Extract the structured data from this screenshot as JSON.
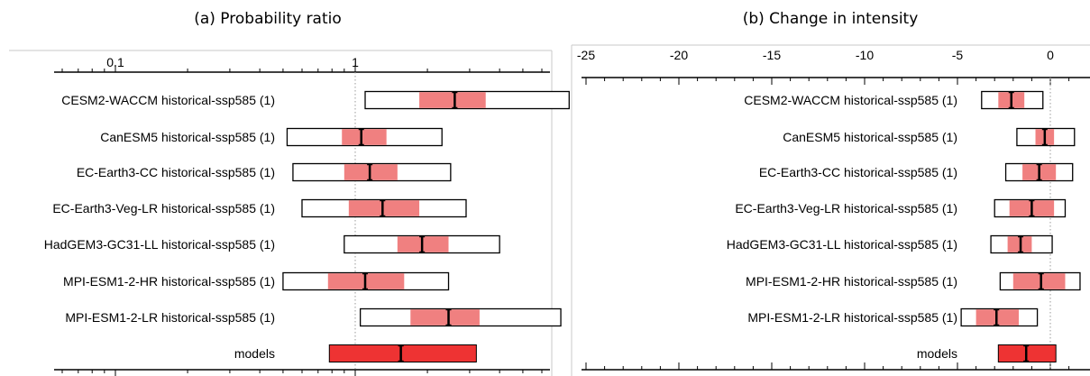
{
  "chart_data": [
    {
      "type": "forest",
      "title": "(a) Probability ratio",
      "xscale": "log",
      "xticks": [
        0.1,
        1
      ],
      "tick_labels": [
        "0.1",
        "1"
      ],
      "reference_line": 1,
      "rows": [
        {
          "label": "CESM2-WACCM historical-ssp585 (1)",
          "best": 2.6,
          "inner": [
            1.85,
            3.5
          ],
          "outer": [
            1.1,
            7.8
          ],
          "style": "model"
        },
        {
          "label": "CanESM5 historical-ssp585 (1)",
          "best": 1.06,
          "inner": [
            0.88,
            1.35
          ],
          "outer": [
            0.52,
            2.3
          ],
          "style": "model"
        },
        {
          "label": "EC-Earth3-CC historical-ssp585 (1)",
          "best": 1.15,
          "inner": [
            0.9,
            1.5
          ],
          "outer": [
            0.55,
            2.5
          ],
          "style": "model"
        },
        {
          "label": "EC-Earth3-Veg-LR historical-ssp585 (1)",
          "best": 1.3,
          "inner": [
            0.94,
            1.85
          ],
          "outer": [
            0.6,
            2.9
          ],
          "style": "model"
        },
        {
          "label": "HadGEM3-GC31-LL historical-ssp585 (1)",
          "best": 1.9,
          "inner": [
            1.5,
            2.45
          ],
          "outer": [
            0.9,
            4.0
          ],
          "style": "model"
        },
        {
          "label": "MPI-ESM1-2-HR historical-ssp585 (1)",
          "best": 1.1,
          "inner": [
            0.77,
            1.6
          ],
          "outer": [
            0.5,
            2.45
          ],
          "style": "model"
        },
        {
          "label": "MPI-ESM1-2-LR historical-ssp585 (1)",
          "best": 2.45,
          "inner": [
            1.7,
            3.3
          ],
          "outer": [
            1.05,
            7.2
          ],
          "style": "model"
        },
        {
          "label": "models",
          "best": 1.55,
          "inner": [
            0.78,
            3.2
          ],
          "outer": [
            0.78,
            3.2
          ],
          "style": "synthesis"
        }
      ]
    },
    {
      "type": "forest",
      "title": "(b) Change in intensity",
      "xscale": "linear",
      "xlim": [
        -25,
        0
      ],
      "xticks": [
        -25,
        -20,
        -15,
        -10,
        -5,
        0
      ],
      "tick_labels": [
        "-25",
        "-20",
        "-15",
        "-10",
        "-5",
        "0"
      ],
      "reference_line": 0,
      "rows": [
        {
          "label": "CESM2-WACCM historical-ssp585 (1)",
          "best": -2.1,
          "inner": [
            -2.8,
            -1.4
          ],
          "outer": [
            -3.7,
            -0.4
          ],
          "style": "model"
        },
        {
          "label": "CanESM5 historical-ssp585 (1)",
          "best": -0.3,
          "inner": [
            -0.8,
            0.2
          ],
          "outer": [
            -1.8,
            1.3
          ],
          "style": "model"
        },
        {
          "label": "EC-Earth3-CC historical-ssp585 (1)",
          "best": -0.6,
          "inner": [
            -1.5,
            0.3
          ],
          "outer": [
            -2.4,
            1.2
          ],
          "style": "model"
        },
        {
          "label": "EC-Earth3-Veg-LR historical-ssp585 (1)",
          "best": -1.0,
          "inner": [
            -2.2,
            0.2
          ],
          "outer": [
            -3.0,
            0.8
          ],
          "style": "model"
        },
        {
          "label": "HadGEM3-GC31-LL historical-ssp585 (1)",
          "best": -1.6,
          "inner": [
            -2.3,
            -1.0
          ],
          "outer": [
            -3.2,
            0.1
          ],
          "style": "model"
        },
        {
          "label": "MPI-ESM1-2-HR historical-ssp585 (1)",
          "best": -0.5,
          "inner": [
            -2.0,
            0.8
          ],
          "outer": [
            -2.7,
            1.6
          ],
          "style": "model"
        },
        {
          "label": "MPI-ESM1-2-LR historical-ssp585 (1)",
          "best": -2.9,
          "inner": [
            -4.0,
            -1.7
          ],
          "outer": [
            -4.8,
            -0.7
          ],
          "style": "model"
        },
        {
          "label": "models",
          "best": -1.3,
          "inner": [
            -2.8,
            0.3
          ],
          "outer": [
            -2.8,
            0.3
          ],
          "style": "synthesis"
        }
      ]
    }
  ],
  "colors": {
    "inner_bar": "#f08080",
    "synthesis_bar": "#ee3333",
    "box_border": "#000000",
    "best_marker": "#000000",
    "reference_line": "#999999"
  }
}
